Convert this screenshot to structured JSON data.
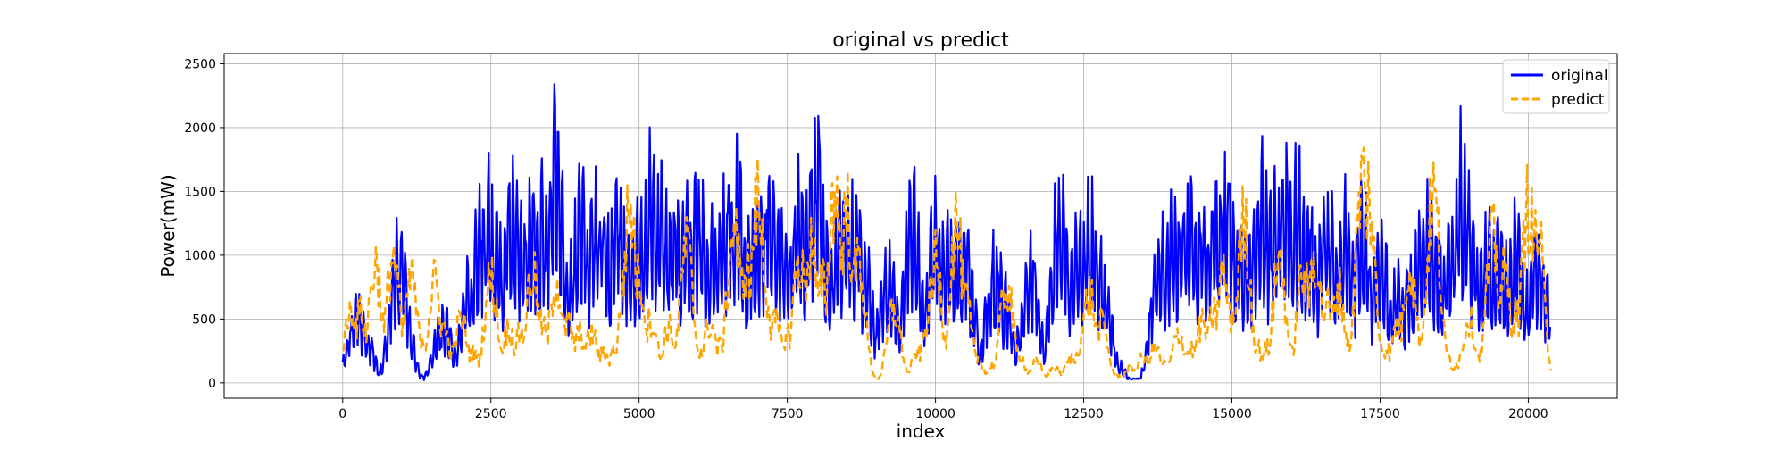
{
  "chart_data": {
    "type": "line",
    "title": "original vs predict",
    "xlabel": "index",
    "ylabel": "Power(mW)",
    "xlim": [
      -2000,
      21500
    ],
    "ylim": [
      -120,
      2580
    ],
    "xticks": [
      0,
      2500,
      5000,
      7500,
      10000,
      12500,
      15000,
      17500,
      20000
    ],
    "xtick_labels": [
      "0",
      "2500",
      "5000",
      "7500",
      "10000",
      "12500",
      "15000",
      "17500",
      "20000"
    ],
    "yticks": [
      0,
      500,
      1000,
      1500,
      2000,
      2500
    ],
    "ytick_labels": [
      "0",
      "500",
      "1000",
      "1500",
      "2000",
      "2500"
    ],
    "grid": true,
    "legend_position": "top-right",
    "series": [
      {
        "name": "original",
        "color": "#0000ff",
        "style": "solid",
        "peaks": [
          [
            180,
            250
          ],
          [
            250,
            820
          ],
          [
            350,
            600
          ],
          [
            600,
            80
          ],
          [
            920,
            470
          ],
          [
            960,
            1420
          ],
          [
            1250,
            100
          ],
          [
            1650,
            80
          ],
          [
            1700,
            700
          ],
          [
            2100,
            200
          ],
          [
            2150,
            1150
          ],
          [
            2300,
            50
          ],
          [
            2330,
            1750
          ],
          [
            2450,
            1900
          ],
          [
            2580,
            1650
          ],
          [
            2850,
            1970
          ],
          [
            3000,
            1500
          ],
          [
            3180,
            1800
          ],
          [
            3380,
            1900
          ],
          [
            3600,
            2450
          ],
          [
            3800,
            1150
          ],
          [
            3980,
            1600
          ],
          [
            4000,
            1950
          ],
          [
            4250,
            1800
          ],
          [
            4400,
            1700
          ],
          [
            4650,
            1950
          ],
          [
            4850,
            1400
          ],
          [
            5000,
            1650
          ],
          [
            5200,
            2080
          ],
          [
            5400,
            2020
          ],
          [
            5600,
            1850
          ],
          [
            5800,
            1750
          ],
          [
            6000,
            1880
          ],
          [
            6200,
            1500
          ],
          [
            6400,
            1700
          ],
          [
            6550,
            1830
          ],
          [
            6650,
            2000
          ],
          [
            6900,
            1450
          ],
          [
            7050,
            1650
          ],
          [
            7200,
            2050
          ],
          [
            7400,
            1600
          ],
          [
            7700,
            1870
          ],
          [
            7800,
            1350
          ],
          [
            7900,
            1900
          ],
          [
            8000,
            2430
          ],
          [
            8100,
            1600
          ],
          [
            8300,
            500
          ],
          [
            8380,
            1750
          ],
          [
            8550,
            1860
          ],
          [
            8650,
            1700
          ],
          [
            8800,
            1320
          ],
          [
            9200,
            1300
          ],
          [
            9300,
            250
          ],
          [
            9600,
            1950
          ],
          [
            9900,
            300
          ],
          [
            10000,
            1850
          ],
          [
            10200,
            1500
          ],
          [
            10400,
            1600
          ],
          [
            10500,
            1400
          ],
          [
            11000,
            1300
          ],
          [
            11150,
            900
          ],
          [
            11600,
            1300
          ],
          [
            12000,
            200
          ],
          [
            12100,
            1950
          ],
          [
            12400,
            1550
          ],
          [
            12600,
            1750
          ],
          [
            12800,
            1250
          ],
          [
            13000,
            300
          ],
          [
            13400,
            50
          ],
          [
            13700,
            100
          ],
          [
            13800,
            1450
          ],
          [
            14000,
            1600
          ],
          [
            14100,
            1400
          ],
          [
            14200,
            1600
          ],
          [
            14300,
            1800
          ],
          [
            14500,
            1600
          ],
          [
            14700,
            1750
          ],
          [
            14900,
            2050
          ],
          [
            15100,
            1600
          ],
          [
            15300,
            1450
          ],
          [
            15500,
            2000
          ],
          [
            15700,
            1850
          ],
          [
            15900,
            2000
          ],
          [
            16100,
            1950
          ],
          [
            16300,
            1650
          ],
          [
            16600,
            1850
          ],
          [
            16900,
            1680
          ],
          [
            17000,
            1400
          ],
          [
            17200,
            1700
          ],
          [
            17500,
            1500
          ],
          [
            17800,
            1100
          ],
          [
            18000,
            1000
          ],
          [
            18150,
            1500
          ],
          [
            18300,
            1620
          ],
          [
            18500,
            1300
          ],
          [
            18700,
            1650
          ],
          [
            18900,
            2280
          ],
          [
            19100,
            1350
          ],
          [
            19300,
            1500
          ],
          [
            19500,
            1550
          ],
          [
            19700,
            1320
          ],
          [
            19800,
            1500
          ],
          [
            19900,
            1150
          ],
          [
            20100,
            1400
          ],
          [
            20200,
            1300
          ],
          [
            20350,
            800
          ]
        ],
        "last_index": 20380
      },
      {
        "name": "predict",
        "color": "#ffa500",
        "style": "dashed",
        "peaks": [
          [
            0,
            430
          ],
          [
            150,
            750
          ],
          [
            300,
            700
          ],
          [
            450,
            300
          ],
          [
            550,
            1200
          ],
          [
            700,
            300
          ],
          [
            850,
            1280
          ],
          [
            1000,
            250
          ],
          [
            1150,
            1050
          ],
          [
            1300,
            500
          ],
          [
            1450,
            250
          ],
          [
            1550,
            1000
          ],
          [
            1700,
            550
          ],
          [
            1850,
            300
          ],
          [
            2000,
            650
          ],
          [
            2200,
            300
          ],
          [
            2400,
            350
          ],
          [
            2500,
            1050
          ],
          [
            2650,
            300
          ],
          [
            2800,
            550
          ],
          [
            3000,
            500
          ],
          [
            3200,
            1100
          ],
          [
            3350,
            600
          ],
          [
            3600,
            1030
          ],
          [
            3800,
            600
          ],
          [
            4000,
            500
          ],
          [
            4200,
            500
          ],
          [
            4400,
            300
          ],
          [
            4600,
            350
          ],
          [
            4800,
            1300
          ],
          [
            4850,
            1760
          ],
          [
            5000,
            1050
          ],
          [
            5200,
            650
          ],
          [
            5500,
            550
          ],
          [
            5800,
            1380
          ],
          [
            6000,
            350
          ],
          [
            6200,
            600
          ],
          [
            6400,
            400
          ],
          [
            6600,
            1600
          ],
          [
            6800,
            1200
          ],
          [
            7000,
            1800
          ],
          [
            7100,
            1050
          ],
          [
            7300,
            600
          ],
          [
            7500,
            500
          ],
          [
            7700,
            1250
          ],
          [
            7900,
            1400
          ],
          [
            8100,
            1000
          ],
          [
            8300,
            1950
          ],
          [
            8500,
            1750
          ],
          [
            8700,
            1250
          ],
          [
            8900,
            100
          ],
          [
            9000,
            0
          ],
          [
            9200,
            0
          ],
          [
            9300,
            750
          ],
          [
            9500,
            100
          ],
          [
            9700,
            300
          ],
          [
            9900,
            700
          ],
          [
            10000,
            1200
          ],
          [
            10350,
            1600
          ],
          [
            10500,
            850
          ],
          [
            10700,
            250
          ],
          [
            11000,
            200
          ],
          [
            11200,
            1000
          ],
          [
            11400,
            300
          ],
          [
            11700,
            200
          ],
          [
            12000,
            150
          ],
          [
            12300,
            250
          ],
          [
            12500,
            500
          ],
          [
            12600,
            900
          ],
          [
            12800,
            600
          ],
          [
            13000,
            100
          ],
          [
            13300,
            150
          ],
          [
            13500,
            250
          ],
          [
            13700,
            350
          ],
          [
            13900,
            200
          ],
          [
            14100,
            500
          ],
          [
            14300,
            350
          ],
          [
            14500,
            600
          ],
          [
            14700,
            700
          ],
          [
            14850,
            1100
          ],
          [
            15000,
            700
          ],
          [
            15200,
            1600
          ],
          [
            15400,
            400
          ],
          [
            15600,
            350
          ],
          [
            15800,
            1250
          ],
          [
            16000,
            300
          ],
          [
            16200,
            1100
          ],
          [
            16400,
            1300
          ],
          [
            16600,
            800
          ],
          [
            16800,
            950
          ],
          [
            17000,
            400
          ],
          [
            17200,
            2050
          ],
          [
            17300,
            1900
          ],
          [
            17450,
            500
          ],
          [
            17600,
            350
          ],
          [
            17800,
            600
          ],
          [
            18000,
            1200
          ],
          [
            18200,
            500
          ],
          [
            18400,
            1900
          ],
          [
            18600,
            300
          ],
          [
            18800,
            200
          ],
          [
            19000,
            650
          ],
          [
            19200,
            300
          ],
          [
            19400,
            1450
          ],
          [
            19600,
            1100
          ],
          [
            19800,
            700
          ],
          [
            20000,
            1800
          ],
          [
            20150,
            1550
          ],
          [
            20300,
            200
          ],
          [
            20380,
            180
          ]
        ],
        "last_index": 20380
      }
    ]
  }
}
